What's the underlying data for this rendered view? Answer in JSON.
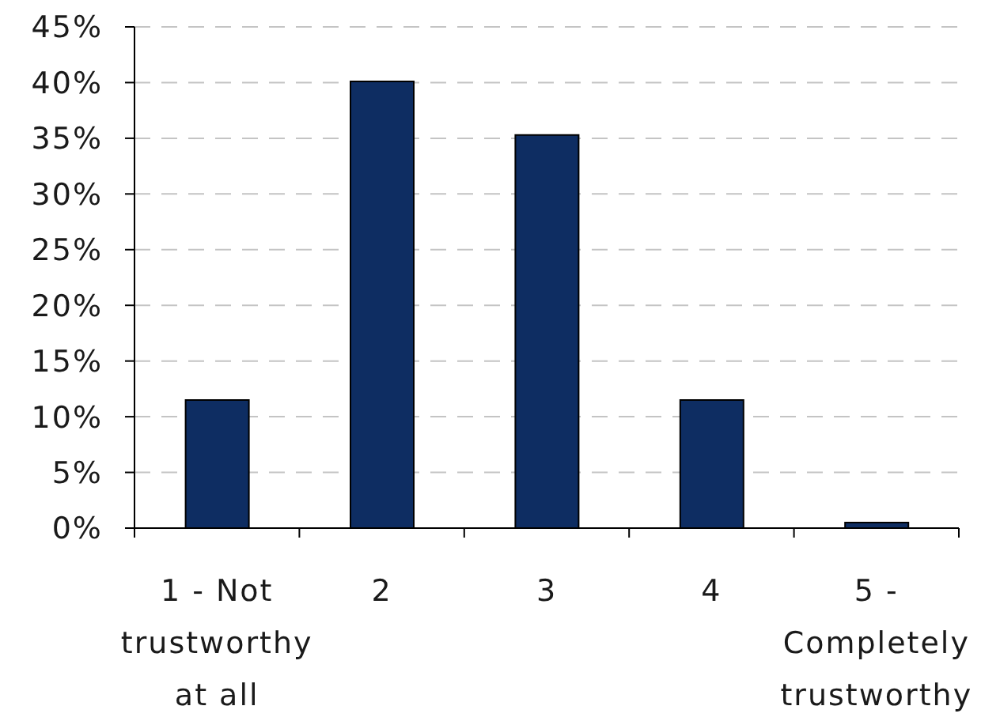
{
  "chart_data": {
    "type": "bar",
    "categories": [
      "1 - Not trustworthy at all",
      "2",
      "3",
      "4",
      "5 - Completely trustworthy"
    ],
    "values": [
      11.5,
      40.1,
      35.3,
      11.5,
      0.5
    ],
    "color": "#0e2d62",
    "ylim": [
      0,
      45
    ],
    "yticks": [
      {
        "value": 0,
        "label": "0%"
      },
      {
        "value": 5,
        "label": "5%"
      },
      {
        "value": 10,
        "label": "10%"
      },
      {
        "value": 15,
        "label": "15%"
      },
      {
        "value": 20,
        "label": "20%"
      },
      {
        "value": 25,
        "label": "25%"
      },
      {
        "value": 30,
        "label": "30%"
      },
      {
        "value": 35,
        "label": "35%"
      },
      {
        "value": 40,
        "label": "40%"
      },
      {
        "value": 45,
        "label": "45%"
      }
    ],
    "grid": "y"
  }
}
